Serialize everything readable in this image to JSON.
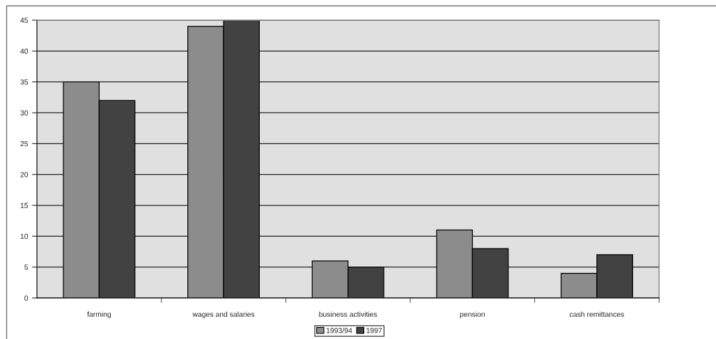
{
  "chart_data": {
    "type": "bar",
    "categories": [
      "farming",
      "wages and salaries",
      "business activities",
      "pension",
      "cash remittances"
    ],
    "series": [
      {
        "name": "1993/94",
        "color": "#8c8c8c",
        "values": [
          35,
          44,
          6,
          11,
          4
        ]
      },
      {
        "name": "1997",
        "color": "#424242",
        "values": [
          32,
          45,
          5,
          8,
          7
        ]
      }
    ],
    "ylim": [
      0,
      45
    ],
    "yticks": [
      0,
      5,
      10,
      15,
      20,
      25,
      30,
      35,
      40,
      45
    ],
    "grid": "y",
    "legend": "bottom"
  }
}
